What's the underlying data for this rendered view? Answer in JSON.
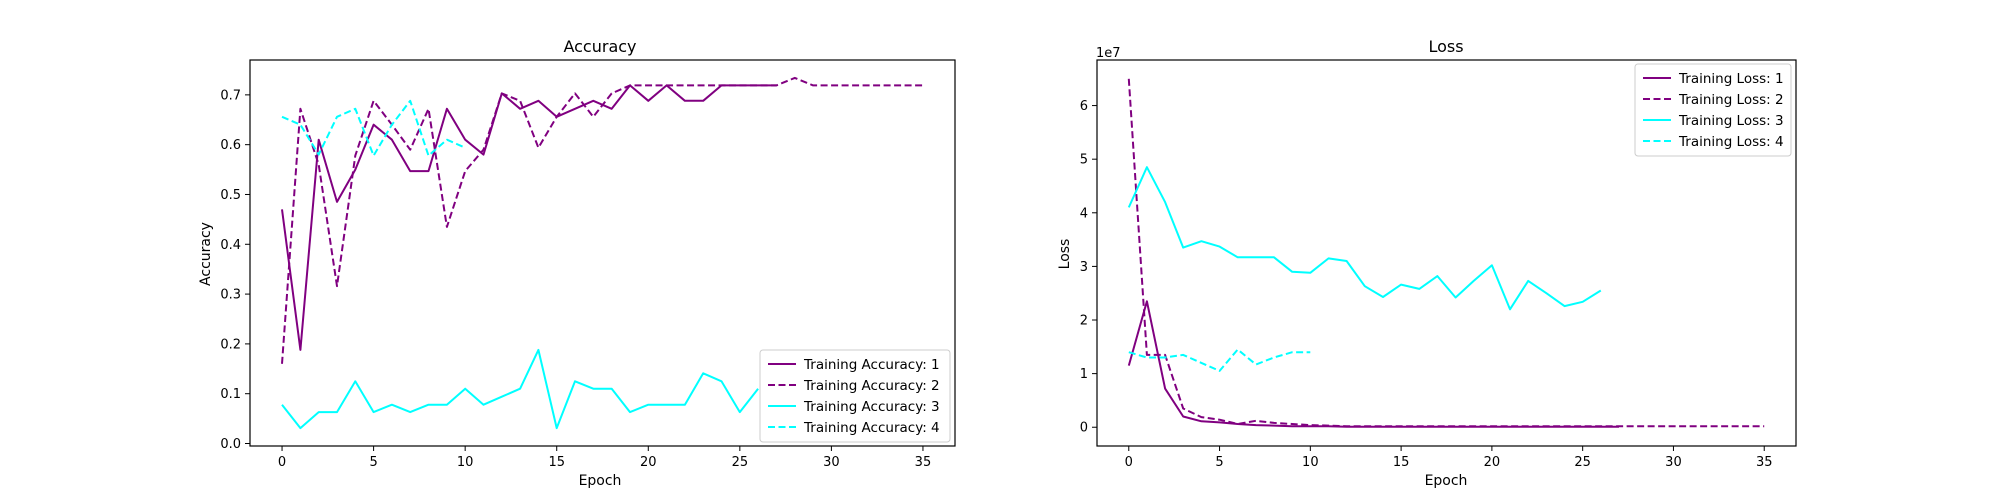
{
  "colors": {
    "purple": "#800080",
    "cyan": "#00ffff",
    "frame": "#000000",
    "legend_border": "#cccccc"
  },
  "chart_data": [
    {
      "type": "line",
      "title": "Accuracy",
      "xlabel": "Epoch",
      "ylabel": "Accuracy",
      "xlim": [
        -1.75,
        36.75
      ],
      "ylim": [
        -0.005,
        0.77
      ],
      "xticks": [
        0,
        5,
        10,
        15,
        20,
        25,
        30,
        35
      ],
      "yticks": [
        0.0,
        0.1,
        0.2,
        0.3,
        0.4,
        0.5,
        0.6,
        0.7
      ],
      "ytick_labels": [
        "0.0",
        "0.1",
        "0.2",
        "0.3",
        "0.4",
        "0.5",
        "0.6",
        "0.7"
      ],
      "grid": false,
      "legend_position": "lower-right",
      "series": [
        {
          "name": "Training Accuracy: 1",
          "color": "#800080",
          "style": "solid",
          "y": [
            0.47,
            0.188,
            0.61,
            0.485,
            0.55,
            0.64,
            0.61,
            0.547,
            0.547,
            0.672,
            0.61,
            0.58,
            0.703,
            0.672,
            0.688,
            0.656,
            0.672,
            0.688,
            0.672,
            0.719,
            0.688,
            0.719,
            0.688,
            0.688,
            0.719,
            0.719,
            0.719,
            0.719
          ]
        },
        {
          "name": "Training Accuracy: 2",
          "color": "#800080",
          "style": "dashed",
          "y": [
            0.16,
            0.672,
            0.56,
            0.316,
            0.578,
            0.688,
            0.64,
            0.59,
            0.672,
            0.435,
            0.547,
            0.59,
            0.703,
            0.688,
            0.594,
            0.656,
            0.703,
            0.656,
            0.703,
            0.719,
            0.719,
            0.719,
            0.719,
            0.719,
            0.719,
            0.719,
            0.719,
            0.719,
            0.734,
            0.719,
            0.719,
            0.719,
            0.719,
            0.719,
            0.719,
            0.719
          ]
        },
        {
          "name": "Training Accuracy: 3",
          "color": "#00ffff",
          "style": "solid",
          "y": [
            0.078,
            0.031,
            0.063,
            0.063,
            0.125,
            0.063,
            0.078,
            0.063,
            0.078,
            0.078,
            0.11,
            0.078,
            0.094,
            0.11,
            0.188,
            0.031,
            0.125,
            0.11,
            0.11,
            0.063,
            0.078,
            0.078,
            0.078,
            0.141,
            0.125,
            0.063,
            0.11
          ]
        },
        {
          "name": "Training Accuracy: 4",
          "color": "#00ffff",
          "style": "dashed",
          "y": [
            0.656,
            0.64,
            0.58,
            0.656,
            0.672,
            0.578,
            0.64,
            0.688,
            0.578,
            0.61,
            0.594
          ]
        }
      ]
    },
    {
      "type": "line",
      "title": "Loss",
      "xlabel": "Epoch",
      "ylabel": "Loss",
      "offset_text": "1e7",
      "xlim": [
        -1.75,
        36.75
      ],
      "ylim": [
        -0.35,
        6.85
      ],
      "xticks": [
        0,
        5,
        10,
        15,
        20,
        25,
        30,
        35
      ],
      "yticks": [
        0,
        1,
        2,
        3,
        4,
        5,
        6
      ],
      "ytick_labels": [
        "0",
        "1",
        "2",
        "3",
        "4",
        "5",
        "6"
      ],
      "grid": false,
      "legend_position": "upper-right",
      "series": [
        {
          "name": "Training Loss: 1",
          "color": "#800080",
          "style": "solid",
          "y": [
            1.15,
            2.35,
            0.72,
            0.2,
            0.11,
            0.09,
            0.06,
            0.04,
            0.03,
            0.02,
            0.02,
            0.02,
            0.01,
            0.01,
            0.01,
            0.01,
            0.01,
            0.01,
            0.01,
            0.01,
            0.01,
            0.01,
            0.01,
            0.01,
            0.01,
            0.01,
            0.01,
            0.01
          ]
        },
        {
          "name": "Training Loss: 2",
          "color": "#800080",
          "style": "dashed",
          "y": [
            6.5,
            1.35,
            1.35,
            0.35,
            0.19,
            0.14,
            0.06,
            0.12,
            0.08,
            0.06,
            0.04,
            0.03,
            0.02,
            0.02,
            0.02,
            0.02,
            0.02,
            0.02,
            0.02,
            0.02,
            0.02,
            0.02,
            0.02,
            0.02,
            0.02,
            0.02,
            0.02,
            0.02,
            0.02,
            0.02,
            0.02,
            0.02,
            0.02,
            0.02,
            0.02,
            0.02
          ]
        },
        {
          "name": "Training Loss: 3",
          "color": "#00ffff",
          "style": "solid",
          "y": [
            4.1,
            4.85,
            4.2,
            3.35,
            3.47,
            3.37,
            3.17,
            3.17,
            3.17,
            2.9,
            2.88,
            3.15,
            3.1,
            2.63,
            2.43,
            2.66,
            2.58,
            2.82,
            2.42,
            2.73,
            3.02,
            2.2,
            2.73,
            2.5,
            2.26,
            2.34,
            2.55
          ]
        },
        {
          "name": "Training Loss: 4",
          "color": "#00ffff",
          "style": "dashed",
          "y": [
            1.4,
            1.3,
            1.3,
            1.35,
            1.2,
            1.05,
            1.45,
            1.17,
            1.3,
            1.4,
            1.4
          ]
        }
      ]
    }
  ]
}
